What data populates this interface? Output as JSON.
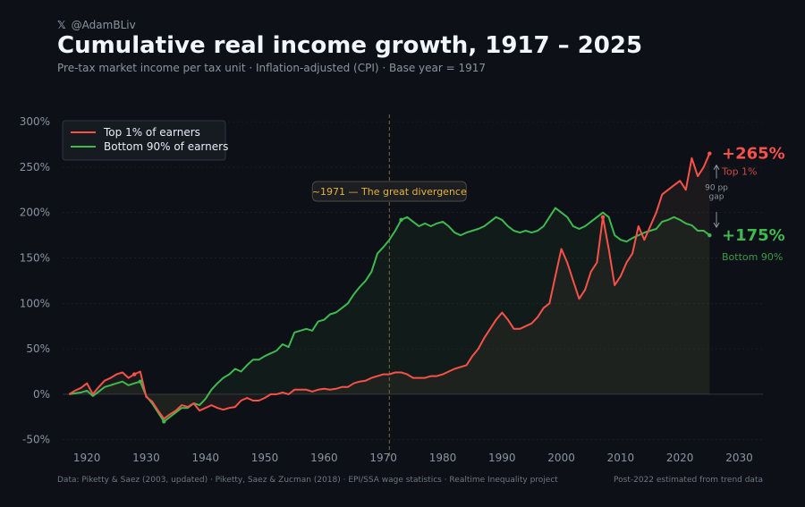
{
  "header": {
    "x_glyph": "𝕏",
    "handle": "@AdamBLiv",
    "title": "Cumulative real income growth, 1917 – 2025",
    "subtitle": "Pre-tax market income per tax unit  ·  Inflation-adjusted (CPI)  ·  Base year = 1917"
  },
  "footer": {
    "sources": "Data: Piketty & Saez (2003, updated) · Piketty, Saez & Zucman (2018) · EPI/SSA wage statistics · Realtime Inequality project",
    "note": "Post-2022 estimated from trend data"
  },
  "colors": {
    "top": "#f85149",
    "bottom": "#3fb950",
    "annotation": "#e3b341",
    "grid": "#21262d",
    "axis_text": "#8b949e"
  },
  "chart_data": {
    "type": "line",
    "title": "Cumulative real income growth, 1917 – 2025",
    "xlabel": "",
    "ylabel": "",
    "xlim": [
      1915,
      2034
    ],
    "ylim": [
      -68,
      308
    ],
    "x_ticks": [
      1920,
      1930,
      1940,
      1950,
      1960,
      1970,
      1980,
      1990,
      2000,
      2010,
      2020,
      2030
    ],
    "y_ticks": [
      -50,
      0,
      50,
      100,
      150,
      200,
      250,
      300
    ],
    "y_tick_labels": [
      "-50%",
      "0%",
      "50%",
      "100%",
      "150%",
      "200%",
      "250%",
      "300%"
    ],
    "legend": {
      "placement": "top-left",
      "entries": [
        "Top 1% of earners",
        "Bottom 90% of earners"
      ]
    },
    "series": [
      {
        "name": "Top 1% of earners",
        "key": "top",
        "x": [
          1917,
          1918,
          1919,
          1920,
          1921,
          1922,
          1923,
          1924,
          1925,
          1926,
          1927,
          1928,
          1929,
          1930,
          1931,
          1932,
          1933,
          1934,
          1935,
          1936,
          1937,
          1938,
          1939,
          1940,
          1941,
          1942,
          1943,
          1944,
          1945,
          1946,
          1947,
          1948,
          1949,
          1950,
          1951,
          1952,
          1953,
          1954,
          1955,
          1956,
          1957,
          1958,
          1959,
          1960,
          1961,
          1962,
          1963,
          1964,
          1965,
          1966,
          1967,
          1968,
          1969,
          1970,
          1971,
          1972,
          1973,
          1974,
          1975,
          1976,
          1977,
          1978,
          1979,
          1980,
          1981,
          1982,
          1983,
          1984,
          1985,
          1986,
          1987,
          1988,
          1989,
          1990,
          1991,
          1992,
          1993,
          1994,
          1995,
          1996,
          1997,
          1998,
          1999,
          2000,
          2001,
          2002,
          2003,
          2004,
          2005,
          2006,
          2007,
          2008,
          2009,
          2010,
          2011,
          2012,
          2013,
          2014,
          2015,
          2016,
          2017,
          2018,
          2019,
          2020,
          2021,
          2022,
          2023,
          2024,
          2025
        ],
        "values": [
          0,
          4,
          7,
          12,
          0,
          8,
          15,
          18,
          22,
          24,
          18,
          22,
          25,
          -3,
          -8,
          -18,
          -27,
          -22,
          -18,
          -12,
          -14,
          -10,
          -18,
          -15,
          -12,
          -15,
          -17,
          -15,
          -14,
          -7,
          -4,
          -7,
          -7,
          -4,
          0,
          0,
          2,
          0,
          5,
          5,
          5,
          3,
          5,
          6,
          5,
          6,
          8,
          8,
          12,
          14,
          15,
          18,
          20,
          22,
          22,
          24,
          24,
          22,
          18,
          18,
          18,
          20,
          20,
          22,
          25,
          28,
          30,
          32,
          42,
          50,
          62,
          72,
          82,
          90,
          82,
          72,
          72,
          75,
          78,
          85,
          95,
          100,
          130,
          160,
          145,
          125,
          105,
          115,
          135,
          145,
          195,
          160,
          120,
          130,
          145,
          155,
          185,
          170,
          185,
          200,
          220,
          225,
          230,
          235,
          225,
          260,
          240,
          250,
          265
        ]
      },
      {
        "name": "Bottom 90% of earners",
        "key": "bottom",
        "x": [
          1917,
          1918,
          1919,
          1920,
          1921,
          1922,
          1923,
          1924,
          1925,
          1926,
          1927,
          1928,
          1929,
          1930,
          1931,
          1932,
          1933,
          1934,
          1935,
          1936,
          1937,
          1938,
          1939,
          1940,
          1941,
          1942,
          1943,
          1944,
          1945,
          1946,
          1947,
          1948,
          1949,
          1950,
          1951,
          1952,
          1953,
          1954,
          1955,
          1956,
          1957,
          1958,
          1959,
          1960,
          1961,
          1962,
          1963,
          1964,
          1965,
          1966,
          1967,
          1968,
          1969,
          1970,
          1971,
          1972,
          1973,
          1974,
          1975,
          1976,
          1977,
          1978,
          1979,
          1980,
          1981,
          1982,
          1983,
          1984,
          1985,
          1986,
          1987,
          1988,
          1989,
          1990,
          1991,
          1992,
          1993,
          1994,
          1995,
          1996,
          1997,
          1998,
          1999,
          2000,
          2001,
          2002,
          2003,
          2004,
          2005,
          2006,
          2007,
          2008,
          2009,
          2010,
          2011,
          2012,
          2013,
          2014,
          2015,
          2016,
          2017,
          2018,
          2019,
          2020,
          2021,
          2022,
          2023,
          2024,
          2025
        ],
        "values": [
          0,
          1,
          2,
          4,
          -2,
          3,
          8,
          10,
          12,
          14,
          10,
          12,
          14,
          -2,
          -10,
          -20,
          -30,
          -25,
          -20,
          -15,
          -15,
          -10,
          -12,
          -5,
          5,
          12,
          18,
          22,
          28,
          25,
          32,
          38,
          38,
          42,
          45,
          48,
          55,
          52,
          68,
          70,
          72,
          70,
          80,
          82,
          88,
          90,
          95,
          100,
          110,
          118,
          125,
          135,
          155,
          162,
          170,
          180,
          192,
          195,
          190,
          185,
          188,
          185,
          188,
          190,
          185,
          178,
          175,
          178,
          180,
          182,
          185,
          190,
          195,
          192,
          185,
          180,
          178,
          180,
          178,
          180,
          185,
          195,
          205,
          200,
          195,
          185,
          182,
          185,
          190,
          195,
          200,
          195,
          175,
          170,
          168,
          172,
          175,
          178,
          180,
          182,
          190,
          192,
          195,
          192,
          188,
          186,
          180,
          180,
          175
        ]
      }
    ],
    "annotations": {
      "divergence_year": 1971,
      "divergence_label": "~1971 — The great divergence",
      "top_end_label": "+265%",
      "top_end_sublabel": "Top 1%",
      "bottom_end_label": "+175%",
      "bottom_end_sublabel": "Bottom 90%",
      "gap_value": "90 pp",
      "gap_word": "gap",
      "highlight_points": [
        {
          "series": "top",
          "year": 1928,
          "value": 22
        },
        {
          "series": "top",
          "year": 2007,
          "value": 195
        },
        {
          "series": "top",
          "year": 2025,
          "value": 265
        },
        {
          "series": "bottom",
          "year": 1929,
          "value": 14
        },
        {
          "series": "bottom",
          "year": 1933,
          "value": -30
        },
        {
          "series": "bottom",
          "year": 1973,
          "value": 192
        },
        {
          "series": "bottom",
          "year": 2025,
          "value": 175
        }
      ]
    }
  }
}
